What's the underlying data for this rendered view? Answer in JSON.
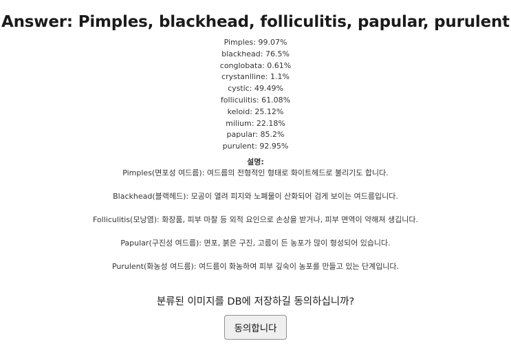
{
  "answer": {
    "title": "Answer: Pimples, blackhead, folliculitis, papular, purulent"
  },
  "probabilities": [
    "Pimples: 99.07%",
    "blackhead: 76.5%",
    "conglobata: 0.61%",
    "crystanlline: 1.1%",
    "cystic: 49.49%",
    "folliculitis: 61.08%",
    "keloid: 25.12%",
    "milium: 22.18%",
    "papular: 85.2%",
    "purulent: 92.95%"
  ],
  "description": {
    "heading": "설명:",
    "items": [
      "Pimples(면포성 여드름): 여드름의 전형적인 형태로 화이트헤드로 불리기도 합니다.",
      "Blackhead(블랙헤드): 모공이 열려 피지와 노폐물이 산화되어 검게 보이는 여드름입니다.",
      "Folliculitis(모낭염): 화장품, 피부 마찰 등 외적 요인으로 손상을 받거나, 피부 면역이 약해져 생깁니다.",
      "Papular(구진성 여드름): 면포, 붉은 구진, 고름이 든 농포가 많이 형성되어 있습니다.",
      "Purulent(화농성 여드름): 여드름이 화농하여 피부 깊숙이 농포를 만들고 있는 단계입니다."
    ]
  },
  "consent": {
    "question": "분류된 이미지를 DB에 저장하길 동의하십니까?",
    "button_label": "동의합니다"
  }
}
